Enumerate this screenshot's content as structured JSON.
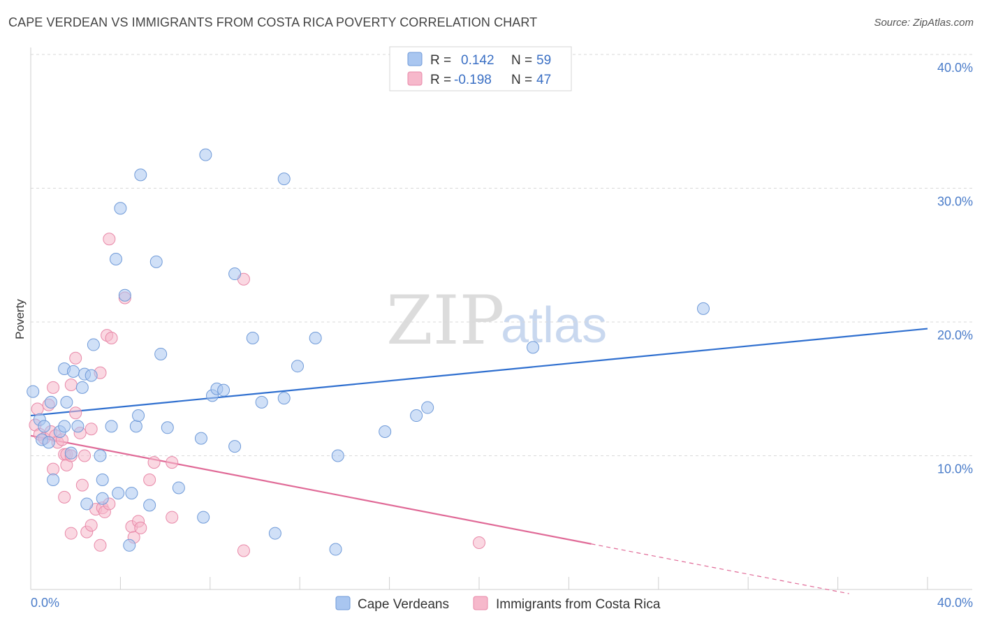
{
  "title": "CAPE VERDEAN VS IMMIGRANTS FROM COSTA RICA POVERTY CORRELATION CHART",
  "source": "Source: ZipAtlas.com",
  "watermark": {
    "zip": "ZIP",
    "atlas": "atlas"
  },
  "colors": {
    "blue_fill": "#a9c6f0",
    "blue_stroke": "#6f9ad8",
    "blue_line": "#2f6fcf",
    "pink_fill": "#f6b8cb",
    "pink_stroke": "#e888a8",
    "pink_line": "#e06a97",
    "grid": "#d9d9d9"
  },
  "legend": {
    "row1": {
      "r_label": "R =",
      "r_value": "0.142",
      "n_label": "N =",
      "n_value": "59"
    },
    "row2": {
      "r_label": "R =",
      "r_value": "-0.198",
      "n_label": "N =",
      "n_value": "47"
    }
  },
  "chart_data": {
    "type": "scatter",
    "title": "CAPE VERDEAN VS IMMIGRANTS FROM COSTA RICA POVERTY CORRELATION CHART",
    "xlabel": "",
    "ylabel": "Poverty",
    "xlim": [
      0,
      40
    ],
    "ylim": [
      0,
      40
    ],
    "x_tick_labels": [
      "0.0%",
      "40.0%"
    ],
    "y_tick_labels": [
      "10.0%",
      "20.0%",
      "30.0%",
      "40.0%"
    ],
    "y_ticks": [
      10,
      20,
      30,
      40
    ],
    "grid": true,
    "legend_position": "bottom",
    "series": [
      {
        "name": "Cape Verdeans",
        "color": "#a9c6f0",
        "r": 0.142,
        "n": 59,
        "trend": {
          "x": [
            0,
            40
          ],
          "y": [
            13.0,
            19.5
          ],
          "solid_until": 40
        },
        "points": [
          [
            0.1,
            14.8
          ],
          [
            0.4,
            12.7
          ],
          [
            0.5,
            11.2
          ],
          [
            0.6,
            12.2
          ],
          [
            0.8,
            11.0
          ],
          [
            0.9,
            14.0
          ],
          [
            1.0,
            8.2
          ],
          [
            1.3,
            11.8
          ],
          [
            1.5,
            12.2
          ],
          [
            1.5,
            16.5
          ],
          [
            1.6,
            14.0
          ],
          [
            1.8,
            10.2
          ],
          [
            1.9,
            16.3
          ],
          [
            2.1,
            12.2
          ],
          [
            2.3,
            15.1
          ],
          [
            2.4,
            16.1
          ],
          [
            2.5,
            6.4
          ],
          [
            2.7,
            16.0
          ],
          [
            2.8,
            18.3
          ],
          [
            3.1,
            10.0
          ],
          [
            3.2,
            8.2
          ],
          [
            3.2,
            6.8
          ],
          [
            3.6,
            12.2
          ],
          [
            3.8,
            24.7
          ],
          [
            3.9,
            7.2
          ],
          [
            4.0,
            28.5
          ],
          [
            4.2,
            22.0
          ],
          [
            4.4,
            3.3
          ],
          [
            4.5,
            7.2
          ],
          [
            4.7,
            12.2
          ],
          [
            4.8,
            13.0
          ],
          [
            4.9,
            31.0
          ],
          [
            5.3,
            6.3
          ],
          [
            5.6,
            24.5
          ],
          [
            5.8,
            17.6
          ],
          [
            6.1,
            12.1
          ],
          [
            6.6,
            7.6
          ],
          [
            7.6,
            11.3
          ],
          [
            7.7,
            5.4
          ],
          [
            7.8,
            32.5
          ],
          [
            8.1,
            14.5
          ],
          [
            8.3,
            15.0
          ],
          [
            8.6,
            14.9
          ],
          [
            9.1,
            10.7
          ],
          [
            9.1,
            23.6
          ],
          [
            9.9,
            18.8
          ],
          [
            10.3,
            14.0
          ],
          [
            10.9,
            4.2
          ],
          [
            11.3,
            14.3
          ],
          [
            11.3,
            30.7
          ],
          [
            11.9,
            16.7
          ],
          [
            12.7,
            18.8
          ],
          [
            13.6,
            3.0
          ],
          [
            13.7,
            10.0
          ],
          [
            15.8,
            11.8
          ],
          [
            17.2,
            13.0
          ],
          [
            17.7,
            13.6
          ],
          [
            22.4,
            18.1
          ],
          [
            30.0,
            21.0
          ]
        ]
      },
      {
        "name": "Immigrants from Costa Rica",
        "color": "#f6b8cb",
        "r": -0.198,
        "n": 47,
        "trend": {
          "x": [
            0,
            38
          ],
          "y": [
            11.5,
            -0.8
          ],
          "solid_until": 25
        },
        "points": [
          [
            0.2,
            12.3
          ],
          [
            0.3,
            13.5
          ],
          [
            0.4,
            11.6
          ],
          [
            0.6,
            11.3
          ],
          [
            0.8,
            13.8
          ],
          [
            0.9,
            11.8
          ],
          [
            1.0,
            9.0
          ],
          [
            1.0,
            15.1
          ],
          [
            1.1,
            11.5
          ],
          [
            1.2,
            11.0
          ],
          [
            1.4,
            11.2
          ],
          [
            1.5,
            10.1
          ],
          [
            1.5,
            6.9
          ],
          [
            1.6,
            10.1
          ],
          [
            1.6,
            9.3
          ],
          [
            1.8,
            10.0
          ],
          [
            1.8,
            4.2
          ],
          [
            1.8,
            15.3
          ],
          [
            2.0,
            13.2
          ],
          [
            2.0,
            17.3
          ],
          [
            2.2,
            11.7
          ],
          [
            2.3,
            7.8
          ],
          [
            2.4,
            10.0
          ],
          [
            2.5,
            4.3
          ],
          [
            2.7,
            4.8
          ],
          [
            2.7,
            12.0
          ],
          [
            2.9,
            6.0
          ],
          [
            3.1,
            3.3
          ],
          [
            3.1,
            16.2
          ],
          [
            3.2,
            6.1
          ],
          [
            3.3,
            5.8
          ],
          [
            3.4,
            19.0
          ],
          [
            3.5,
            26.2
          ],
          [
            3.5,
            6.4
          ],
          [
            3.6,
            18.8
          ],
          [
            4.2,
            21.8
          ],
          [
            4.5,
            4.7
          ],
          [
            4.6,
            3.9
          ],
          [
            4.8,
            5.1
          ],
          [
            4.9,
            4.6
          ],
          [
            5.3,
            8.2
          ],
          [
            5.5,
            9.5
          ],
          [
            6.3,
            5.4
          ],
          [
            6.3,
            9.5
          ],
          [
            9.5,
            2.9
          ],
          [
            9.5,
            23.2
          ],
          [
            20.0,
            3.5
          ]
        ]
      }
    ]
  },
  "bottom_legend": [
    {
      "label": "Cape Verdeans"
    },
    {
      "label": "Immigrants from Costa Rica"
    }
  ]
}
